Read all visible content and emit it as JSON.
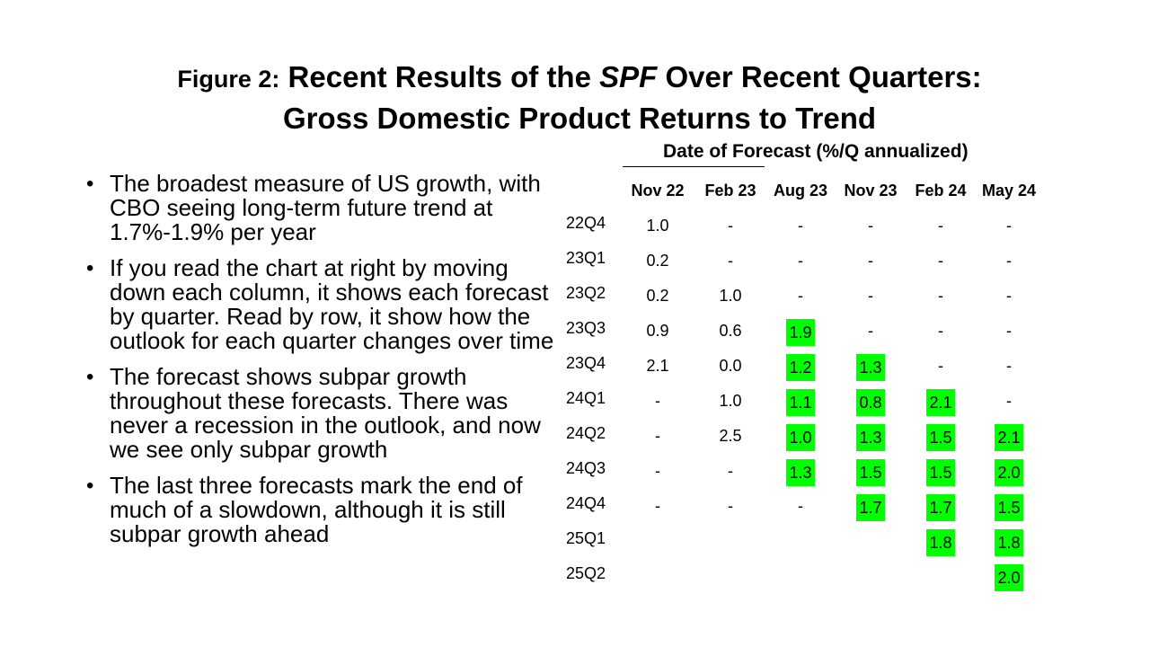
{
  "title": {
    "prefix": "Figure 2:",
    "line1_pre": "Recent Results of the",
    "line1_italic": "SPF",
    "line1_post": "Over Recent Quarters:",
    "line2": "Gross Domestic Product Returns to Trend"
  },
  "bullets": [
    "The broadest measure of US growth, with CBO seeing long-term future trend at 1.7%-1.9% per year",
    "If you read the chart at right by moving down each column, it shows each forecast by quarter. Read by row, it show how the outlook for each quarter changes over time",
    "The forecast shows subpar growth throughout these forecasts.  There was never a recession in the outlook, and now we see only subpar growth",
    "The last three forecasts mark the end of much of a slowdown, although it is still subpar growth ahead"
  ],
  "table": {
    "caption": "Date of Forecast (%/Q annualized)",
    "highlight_color": "#00ff00",
    "columns": [
      "Nov 22",
      "Feb 23",
      "Aug 23",
      "Nov 23",
      "Feb 24",
      "May 24"
    ],
    "rows": [
      {
        "label": "22Q4",
        "cells": [
          "1.0",
          "-",
          "-",
          "-",
          "-",
          "-"
        ],
        "highlight": [
          false,
          false,
          false,
          false,
          false,
          false
        ]
      },
      {
        "label": "23Q1",
        "cells": [
          "0.2",
          "-",
          "-",
          "-",
          "-",
          "-"
        ],
        "highlight": [
          false,
          false,
          false,
          false,
          false,
          false
        ]
      },
      {
        "label": "23Q2",
        "cells": [
          "0.2",
          "1.0",
          "-",
          "-",
          "-",
          "-"
        ],
        "highlight": [
          false,
          false,
          false,
          false,
          false,
          false
        ]
      },
      {
        "label": "23Q3",
        "cells": [
          "0.9",
          "0.6",
          "1.9",
          "-",
          "-",
          "-"
        ],
        "highlight": [
          false,
          false,
          true,
          false,
          false,
          false
        ]
      },
      {
        "label": "23Q4",
        "cells": [
          "2.1",
          "0.0",
          "1.2",
          "1.3",
          "-",
          "-"
        ],
        "highlight": [
          false,
          false,
          true,
          true,
          false,
          false
        ]
      },
      {
        "label": "24Q1",
        "cells": [
          "-",
          "1.0",
          "1.1",
          "0.8",
          "2.1",
          "-"
        ],
        "highlight": [
          false,
          false,
          true,
          true,
          true,
          false
        ]
      },
      {
        "label": "24Q2",
        "cells": [
          "-",
          "2.5",
          "1.0",
          "1.3",
          "1.5",
          "2.1"
        ],
        "highlight": [
          false,
          false,
          true,
          true,
          true,
          true
        ]
      },
      {
        "label": "24Q3",
        "cells": [
          "-",
          "-",
          "1.3",
          "1.5",
          "1.5",
          "2.0"
        ],
        "highlight": [
          false,
          false,
          true,
          true,
          true,
          true
        ]
      },
      {
        "label": "24Q4",
        "cells": [
          "-",
          "-",
          "-",
          "1.7",
          "1.7",
          "1.5"
        ],
        "highlight": [
          false,
          false,
          false,
          true,
          true,
          true
        ]
      },
      {
        "label": "25Q1",
        "cells": [
          "",
          "",
          "",
          "",
          "1.8",
          "1.8"
        ],
        "highlight": [
          false,
          false,
          false,
          false,
          true,
          true
        ]
      },
      {
        "label": "25Q2",
        "cells": [
          "",
          "",
          "",
          "",
          "",
          "2.0"
        ],
        "highlight": [
          false,
          false,
          false,
          false,
          false,
          true
        ]
      }
    ]
  }
}
